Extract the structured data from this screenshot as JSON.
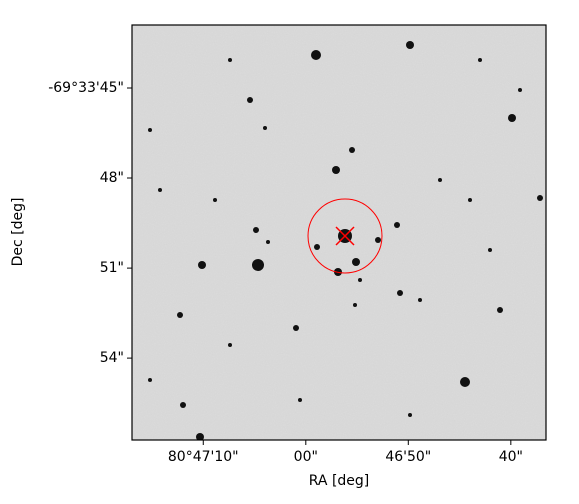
{
  "chart_data": {
    "type": "image",
    "xlabel": "RA [deg]",
    "ylabel": "Dec [deg]",
    "xlim": [
      80.788042,
      80.776825
    ],
    "ylim": [
      -69.565758,
      -69.561917
    ],
    "xticks": [
      {
        "value": 80.786111,
        "label": "80°47'10\""
      },
      {
        "value": 80.783333,
        "label": "00\""
      },
      {
        "value": 80.780556,
        "label": "46'50\""
      },
      {
        "value": 80.777778,
        "label": "40\""
      }
    ],
    "yticks": [
      {
        "value": -69.5625,
        "label": "-69°33'45\""
      },
      {
        "value": -69.563333,
        "label": "48\""
      },
      {
        "value": -69.564167,
        "label": "51\""
      },
      {
        "value": -69.565,
        "label": "54\""
      }
    ]
  }
}
